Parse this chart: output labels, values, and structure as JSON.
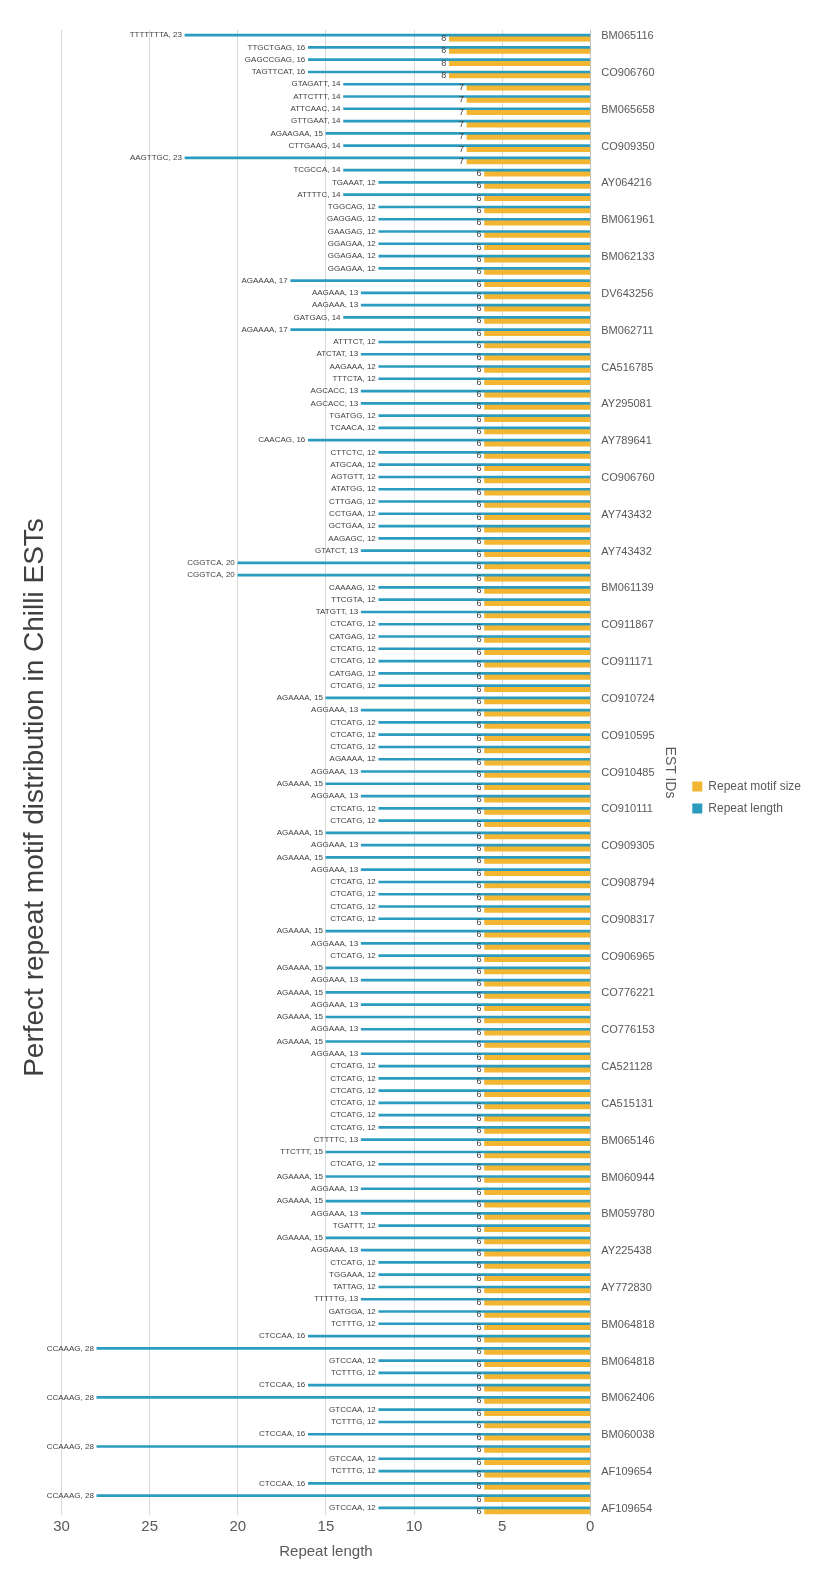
{
  "chart_data": {
    "type": "bar",
    "orientation": "horizontal",
    "title": "Perfect repeat motif distribution in Chilli ESTs",
    "xlabel": "Repeat length",
    "ylabel": "EST IDs",
    "categories": [
      "BM065116",
      null,
      null,
      "CO906760",
      null,
      null,
      "BM065658",
      null,
      null,
      "CO909350",
      null,
      null,
      "AY064216",
      null,
      null,
      "BM061961",
      null,
      null,
      "BM062133",
      null,
      null,
      "DV643256",
      null,
      null,
      "BM062711",
      null,
      null,
      "CA516785",
      null,
      null,
      "AY295081",
      null,
      null,
      "AY789641",
      null,
      null,
      "CO906760",
      null,
      null,
      "AY743432",
      null,
      null,
      "AY743432",
      null,
      null,
      "BM061139",
      null,
      null,
      "CO911867",
      null,
      null,
      "CO911171",
      null,
      null,
      "CO910724",
      null,
      null,
      "CO910595",
      null,
      null,
      "CO910485",
      null,
      null,
      "CO910111",
      null,
      null,
      "CO909305",
      null,
      null,
      "CO908794",
      null,
      null,
      "CO908317",
      null,
      null,
      "CO906965",
      null,
      null,
      "CO776221",
      null,
      null,
      "CO776153",
      null,
      null,
      "CA521128",
      null,
      null,
      "CA515131",
      null,
      null,
      "BM065146",
      null,
      null,
      "BM060944",
      null,
      null,
      "BM059780",
      null,
      null,
      "AY225438",
      null,
      null,
      "AY772830",
      null,
      null,
      "BM064818",
      null,
      null,
      "BM064818",
      null,
      null,
      "BM062406",
      null,
      null,
      "BM060038",
      null,
      null,
      "AF109654",
      null,
      null,
      "AF109654"
    ],
    "series": [
      {
        "name": "Repeat motif size",
        "color": "#f2b632",
        "values": [
          8,
          8,
          8,
          8,
          7,
          7,
          7,
          7,
          7,
          7,
          7,
          6,
          6,
          6,
          6,
          6,
          6,
          6,
          6,
          6,
          6,
          6,
          6,
          6,
          6,
          6,
          6,
          6,
          6,
          6,
          6,
          6,
          6,
          6,
          6,
          6,
          6,
          6,
          6,
          6,
          6,
          6,
          6,
          6,
          6,
          6,
          6,
          6,
          6,
          6,
          6,
          6,
          6,
          6,
          6,
          6,
          6,
          6,
          6,
          6,
          6,
          6,
          6,
          6,
          6,
          6,
          6,
          6,
          6,
          6,
          6,
          6,
          6,
          6,
          6,
          6,
          6,
          6,
          6,
          6,
          6,
          6,
          6,
          6,
          6,
          6,
          6,
          6,
          6,
          6,
          6,
          6,
          6,
          6,
          6,
          6,
          6,
          6,
          6,
          6,
          6,
          6,
          6,
          6,
          6,
          6,
          6,
          6,
          6,
          6,
          6,
          6,
          6,
          6,
          6,
          6,
          6,
          6,
          6,
          6,
          6
        ],
        "value_labels": [
          "8",
          "8",
          "8",
          "8",
          "7",
          "7",
          "7",
          "7",
          "7",
          "7",
          "7",
          "6",
          "6",
          "6",
          "6",
          "6",
          "6",
          "6",
          "6",
          "6",
          "6",
          "6",
          "6",
          "6",
          "6",
          "6",
          "6",
          "6",
          "6",
          "6",
          "6",
          "6",
          "6",
          "6",
          "6",
          "6",
          "6",
          "6",
          "6",
          "6",
          "6",
          "6",
          "6",
          "6",
          "6",
          "6",
          "6",
          "6",
          "6",
          "6",
          "6",
          "6",
          "6",
          "6",
          "6",
          "6",
          "6",
          "6",
          "6",
          "6",
          "6",
          "6",
          "6",
          "6",
          "6",
          "6",
          "6",
          "6",
          "6",
          "6",
          "6",
          "6",
          "6",
          "6",
          "6",
          "6",
          "6",
          "6",
          "6",
          "6",
          "6",
          "6",
          "6",
          "6",
          "6",
          "6",
          "6",
          "6",
          "6",
          "6",
          "6",
          "6",
          "6",
          "6",
          "6",
          "6",
          "6",
          "6",
          "6",
          "6",
          "6",
          "6",
          "6",
          "6",
          "6",
          "6",
          "6",
          "6",
          "6",
          "6",
          "6",
          "6",
          "6",
          "6",
          "6",
          "6",
          "6",
          "6",
          "6",
          "6",
          "6"
        ]
      },
      {
        "name": "Repeat length",
        "color": "#2b9cc0",
        "values": [
          23,
          16,
          16,
          16,
          14,
          14,
          14,
          14,
          15,
          14,
          23,
          14,
          12,
          14,
          12,
          12,
          12,
          12,
          12,
          12,
          17,
          13,
          13,
          14,
          17,
          12,
          13,
          12,
          12,
          13,
          13,
          12,
          12,
          16,
          12,
          12,
          12,
          12,
          12,
          12,
          12,
          12,
          13,
          20,
          20,
          12,
          12,
          13,
          12,
          12,
          12,
          12,
          12,
          12,
          15,
          13,
          12,
          12,
          12,
          12,
          13,
          15,
          13,
          12,
          12,
          15,
          13,
          15,
          13,
          12,
          12,
          12,
          12,
          15,
          13,
          12,
          15,
          13,
          15,
          13,
          15,
          13,
          15,
          13,
          12,
          12,
          12,
          12,
          12,
          12,
          13,
          15,
          12,
          15,
          13,
          15,
          13,
          12,
          15,
          13,
          12,
          12,
          12,
          13,
          12,
          12,
          16,
          28,
          12,
          12,
          16,
          28,
          12,
          12,
          16,
          28,
          12,
          12,
          16,
          28,
          12
        ],
        "value_labels": [
          "TTTTTTTA, 23",
          "TTGCTGAG, 16",
          "GAGCCGAG, 16",
          "TAGTTCAT, 16",
          "GTAGATT, 14",
          "ATTCTTT, 14",
          "ATTCAAC, 14",
          "GTTGAAT, 14",
          "AGAAGAA, 15",
          "CTTGAAG, 14",
          "AAGTTGC, 23",
          "TCGCCA, 14",
          "TGAAAT, 12",
          "ATTTTC, 14",
          "TGGCAG, 12",
          "GAGGAG, 12",
          "GAAGAG, 12",
          "GGAGAA, 12",
          "GGAGAA, 12",
          "GGAGAA, 12",
          "AGAAAA, 17",
          "AAGAAA, 13",
          "AAGAAA, 13",
          "GATGAG, 14",
          "AGAAAA, 17",
          "ATTTCT, 12",
          "ATCTAT, 13",
          "AAGAAA, 12",
          "TTTCTA, 12",
          "AGCACC, 13",
          "AGCACC, 13",
          "TGATGG, 12",
          "TCAACA, 12",
          "CAACAG, 16",
          "CTTCTC, 12",
          "ATGCAA, 12",
          "AGTGTT, 12",
          "ATATGG, 12",
          "CTTGAG, 12",
          "CCTGAA, 12",
          "GCTGAA, 12",
          "AAGAGC, 12",
          "GTATCT, 13",
          "CGGTCA, 20",
          "CGGTCA, 20",
          "CAAAAG, 12",
          "TTCGTA, 12",
          "TATGTT, 13",
          "CTCATG, 12",
          "CATGAG, 12",
          "CTCATG, 12",
          "CTCATG, 12",
          "CATGAG, 12",
          "CTCATG, 12",
          "AGAAAA, 15",
          "AGGAAA, 13",
          "CTCATG, 12",
          "CTCATG, 12",
          "CTCATG, 12",
          "AGAAAA, 12",
          "AGGAAA, 13",
          "AGAAAA, 15",
          "AGGAAA, 13",
          "CTCATG, 12",
          "CTCATG, 12",
          "AGAAAA, 15",
          "AGGAAA, 13",
          "AGAAAA, 15",
          "AGGAAA, 13",
          "CTCATG, 12",
          "CTCATG, 12",
          "CTCATG, 12",
          "CTCATG, 12",
          "AGAAAA, 15",
          "AGGAAA, 13",
          "CTCATG, 12",
          "AGAAAA, 15",
          "AGGAAA, 13",
          "AGAAAA, 15",
          "AGGAAA, 13",
          "AGAAAA, 15",
          "AGGAAA, 13",
          "AGAAAA, 15",
          "AGGAAA, 13",
          "CTCATG, 12",
          "CTCATG, 12",
          "CTCATG, 12",
          "CTCATG, 12",
          "CTCATG, 12",
          "CTCATG, 12",
          "CTTTTC, 13",
          "TTCTTT, 15",
          "CTCATG, 12",
          "AGAAAA, 15",
          "AGGAAA, 13",
          "AGAAAA, 15",
          "AGGAAA, 13",
          "TGATTT, 12",
          "AGAAAA, 15",
          "AGGAAA, 13",
          "CTCATG, 12",
          "TGGAAA, 12",
          "TATTAG, 12",
          "TTTTTG, 13",
          "GATGGA, 12",
          "TCTTTG, 12",
          "CTCCAA, 16",
          "CCAAAG, 28",
          "GTCCAA, 12",
          "TCTTTG, 12",
          "CTCCAA, 16",
          "CCAAAG, 28",
          "GTCCAA, 12",
          "TCTTTG, 12",
          "CTCCAA, 16",
          "CCAAAG, 28",
          "GTCCAA, 12",
          "TCTTTG, 12",
          "CTCCAA, 16",
          "CCAAAG, 28",
          "GTCCAA, 12"
        ]
      }
    ],
    "xlim": [
      30,
      0
    ],
    "xticks": [
      0,
      5,
      10,
      15,
      20,
      25,
      30
    ],
    "grid": "x",
    "legend": "right"
  }
}
